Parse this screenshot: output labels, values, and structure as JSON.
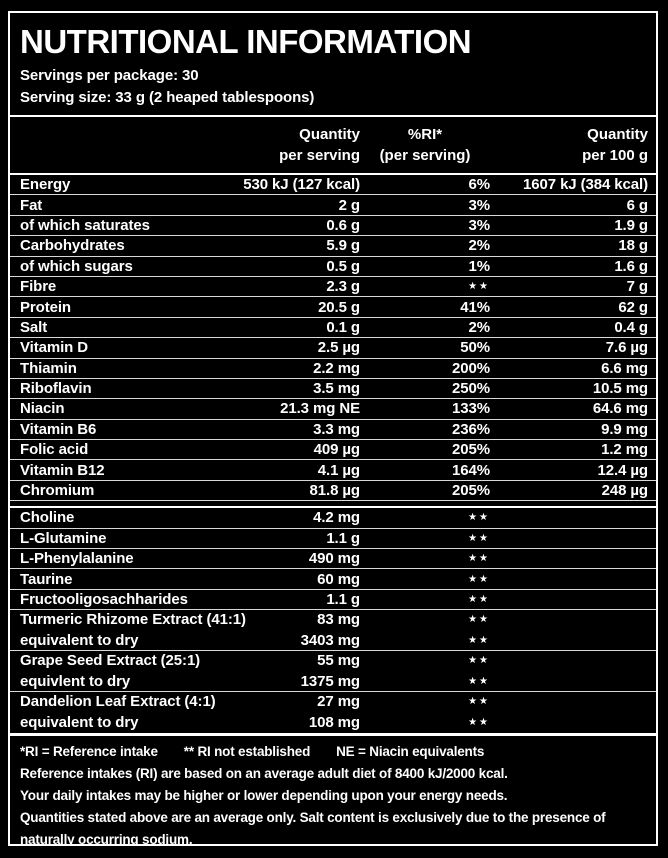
{
  "colors": {
    "background": "#000000",
    "text": "#ffffff",
    "major_rule": "#ffffff",
    "row_rule": "#d9d9d9"
  },
  "header": {
    "title": "NUTRITIONAL INFORMATION",
    "servings_per_package": "Servings per package: 30",
    "serving_size": "Serving size: 33 g (2 heaped tablespoons)"
  },
  "table": {
    "column_headers": {
      "per_serving": {
        "line1": "Quantity",
        "line2": "per serving"
      },
      "ri": {
        "line1": "%RI*",
        "line2": "(per serving)"
      },
      "per_100g": {
        "line1": "Quantity",
        "line2": "per 100 g"
      }
    },
    "sections": [
      {
        "rows": [
          {
            "name": "Energy",
            "per_serving": "530 kJ (127 kcal)",
            "ri": "6%",
            "per_100g": "1607 kJ (384 kcal)"
          },
          {
            "name": "Fat",
            "per_serving": "2 g",
            "ri": "3%",
            "per_100g": "6 g"
          },
          {
            "name": "of which saturates",
            "per_serving": "0.6 g",
            "ri": "3%",
            "per_100g": "1.9 g"
          },
          {
            "name": "Carbohydrates",
            "per_serving": "5.9 g",
            "ri": "2%",
            "per_100g": "18 g"
          },
          {
            "name": "of which sugars",
            "per_serving": "0.5 g",
            "ri": "1%",
            "per_100g": "1.6 g"
          },
          {
            "name": "Fibre",
            "per_serving": "2.3 g",
            "ri": "★★",
            "per_100g": "7 g"
          },
          {
            "name": "Protein",
            "per_serving": "20.5 g",
            "ri": "41%",
            "per_100g": "62 g"
          },
          {
            "name": "Salt",
            "per_serving": "0.1 g",
            "ri": "2%",
            "per_100g": "0.4 g"
          },
          {
            "name": "Vitamin D",
            "per_serving": "2.5 µg",
            "ri": "50%",
            "per_100g": "7.6 µg"
          },
          {
            "name": "Thiamin",
            "per_serving": "2.2 mg",
            "ri": "200%",
            "per_100g": "6.6 mg"
          },
          {
            "name": "Riboflavin",
            "per_serving": "3.5 mg",
            "ri": "250%",
            "per_100g": "10.5 mg"
          },
          {
            "name": "Niacin",
            "per_serving": "21.3 mg NE",
            "ri": "133%",
            "per_100g": "64.6 mg"
          },
          {
            "name": "Vitamin B6",
            "per_serving": "3.3 mg",
            "ri": "236%",
            "per_100g": "9.9 mg"
          },
          {
            "name": "Folic acid",
            "per_serving": "409 µg",
            "ri": "205%",
            "per_100g": "1.2 mg"
          },
          {
            "name": "Vitamin B12",
            "per_serving": "4.1 µg",
            "ri": "164%",
            "per_100g": "12.4 µg"
          },
          {
            "name": "Chromium",
            "per_serving": "81.8 µg",
            "ri": "205%",
            "per_100g": "248 µg"
          }
        ]
      },
      {
        "rows": [
          {
            "name": "Choline",
            "per_serving": "4.2 mg",
            "ri": "★★",
            "per_100g": ""
          },
          {
            "name": "L-Glutamine",
            "per_serving": "1.1 g",
            "ri": "★★",
            "per_100g": ""
          },
          {
            "name": "L-Phenylalanine",
            "per_serving": "490 mg",
            "ri": "★★",
            "per_100g": ""
          },
          {
            "name": "Taurine",
            "per_serving": "60 mg",
            "ri": "★★",
            "per_100g": ""
          },
          {
            "name": "Fructooligosachharides",
            "per_serving": "1.1 g",
            "ri": "★★",
            "per_100g": ""
          },
          {
            "name": "Turmeric Rhizome Extract (41:1)",
            "per_serving": "83 mg",
            "ri": "★★",
            "per_100g": "",
            "join_next": true
          },
          {
            "name": "equivalent to dry",
            "per_serving": "3403 mg",
            "ri": "★★",
            "per_100g": ""
          },
          {
            "name": "Grape Seed Extract (25:1)",
            "per_serving": "55 mg",
            "ri": "★★",
            "per_100g": "",
            "join_next": true
          },
          {
            "name": "equivlent to dry",
            "per_serving": "1375 mg",
            "ri": "★★",
            "per_100g": ""
          },
          {
            "name": "Dandelion Leaf Extract (4:1)",
            "per_serving": "27 mg",
            "ri": "★★",
            "per_100g": "",
            "join_next": true
          },
          {
            "name": "equivalent to dry",
            "per_serving": "108 mg",
            "ri": "★★",
            "per_100g": ""
          }
        ]
      }
    ]
  },
  "footer": {
    "legend": [
      "*RI = Reference intake",
      "** RI not established",
      "NE = Niacin equivalents"
    ],
    "notes": [
      "Reference intakes (RI) are based on an average adult diet of 8400 kJ/2000 kcal.",
      "Your daily intakes may be higher or lower depending upon your energy needs.",
      "Quantities stated above are an average only. Salt content is exclusively due to the presence of naturally occurring sodium."
    ]
  }
}
